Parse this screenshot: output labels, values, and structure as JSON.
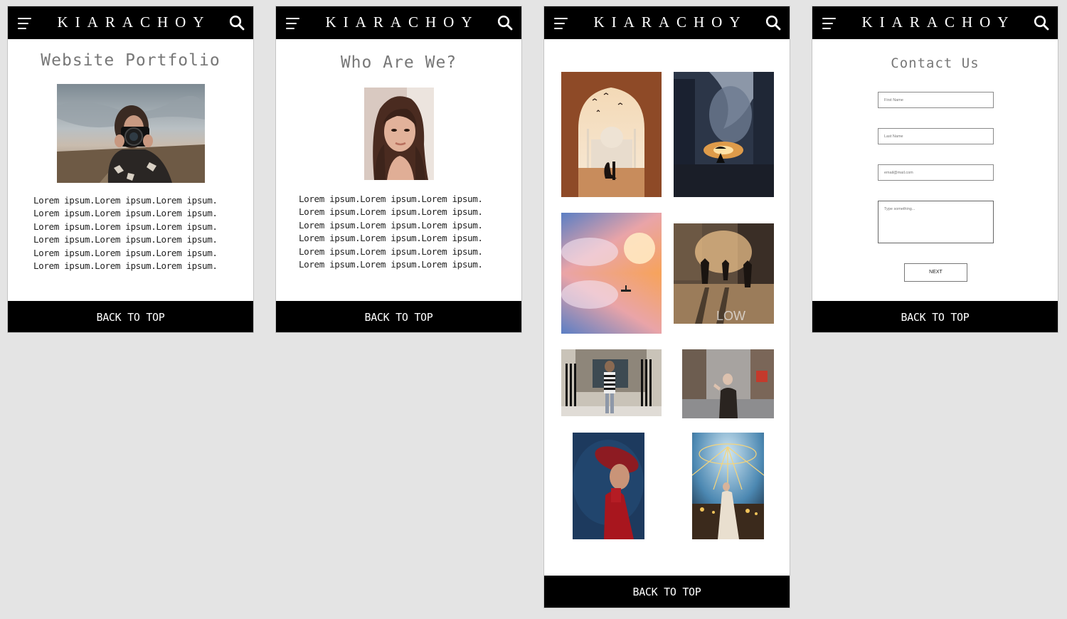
{
  "brand": "KIARACHOY",
  "footer_label": "BACK TO TOP",
  "icons": {
    "menu": "hamburger-menu-icon",
    "search": "search-icon"
  },
  "colors": {
    "bar": "#000000",
    "background": "#e4e4e4",
    "title": "#777777"
  },
  "portfolio": {
    "title": "Website Portfolio",
    "paragraph": [
      "Lorem ipsum.Lorem ipsum.Lorem ipsum.",
      "Lorem ipsum.Lorem ipsum.Lorem ipsum.",
      "Lorem ipsum.Lorem ipsum.Lorem ipsum.",
      "Lorem ipsum.Lorem ipsum.Lorem ipsum.",
      "Lorem ipsum.Lorem ipsum.Lorem ipsum.",
      "Lorem ipsum.Lorem ipsum.Lorem ipsum."
    ]
  },
  "about": {
    "title": "Who Are We?",
    "paragraph": [
      "Lorem ipsum.Lorem ipsum.Lorem ipsum.",
      "Lorem ipsum.Lorem ipsum.Lorem ipsum.",
      "Lorem ipsum.Lorem ipsum.Lorem ipsum.",
      "Lorem ipsum.Lorem ipsum.Lorem ipsum.",
      "Lorem ipsum.Lorem ipsum.Lorem ipsum.",
      "Lorem ipsum.Lorem ipsum.Lorem ipsum."
    ]
  },
  "contact": {
    "title": "Contact Us",
    "first_name_placeholder": "First Name",
    "last_name_placeholder": "Last Name",
    "email_placeholder": "email@mail.com",
    "message_placeholder": "Type something...",
    "next_label": "NEXT"
  }
}
